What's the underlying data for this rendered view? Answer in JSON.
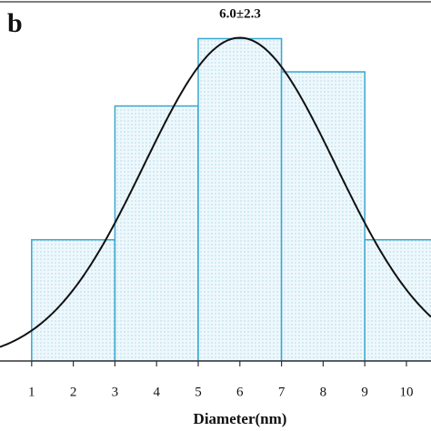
{
  "chart_data": {
    "type": "histogram",
    "panel_label": "b",
    "annotation": "6.0±2.3",
    "x_label": "Diameter(nm)",
    "bins": [
      1,
      3,
      5,
      7,
      9,
      11
    ],
    "values": [
      13.5,
      28.4,
      35.9,
      32.2,
      13.5
    ],
    "color": "#3aa6d0",
    "fill": "#eaf6fb",
    "fit": {
      "mean": 6.0,
      "sd": 2.3,
      "peak": 36
    },
    "xlim": [
      0.24,
      10.59
    ],
    "xticks": [
      1,
      2,
      3,
      4,
      5,
      6,
      7,
      8,
      9,
      10
    ],
    "ylim": [
      0,
      40
    ]
  }
}
